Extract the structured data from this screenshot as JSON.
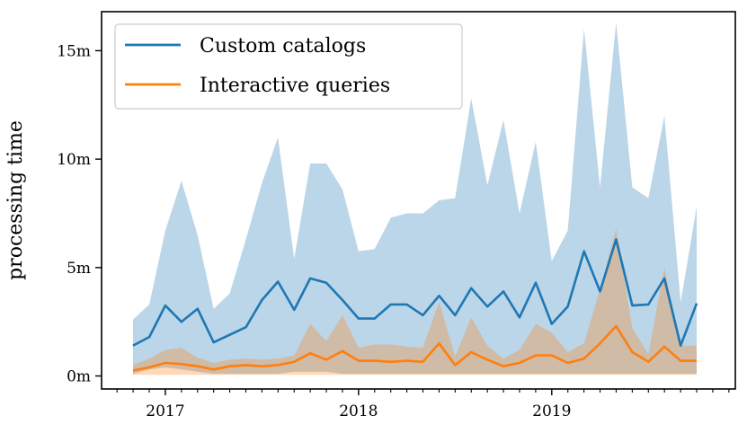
{
  "chart_data": {
    "type": "line",
    "title": "",
    "xlabel": "",
    "ylabel": "processing time",
    "ylim": [
      -0.6,
      16.8
    ],
    "yticks": [
      {
        "value": 0,
        "label": "0m"
      },
      {
        "value": 5,
        "label": "5m"
      },
      {
        "value": 10,
        "label": "10m"
      },
      {
        "value": 15,
        "label": "15m"
      }
    ],
    "xlim": [
      2016.67,
      2019.95
    ],
    "xticks": [
      {
        "value": 2017,
        "label": "2017"
      },
      {
        "value": 2018,
        "label": "2018"
      },
      {
        "value": 2019,
        "label": "2019"
      }
    ],
    "legend": {
      "placement": "top-left",
      "entries": [
        "Custom catalogs",
        "Interactive queries"
      ]
    },
    "series": [
      {
        "name": "Custom catalogs",
        "color": "#1f77b4",
        "band_color": "#1f77b4",
        "points": [
          [
            2016.833,
            1.4,
            0.1,
            2.6
          ],
          [
            2016.917,
            1.8,
            0.3,
            3.3
          ],
          [
            2017.0,
            3.25,
            0.4,
            6.7
          ],
          [
            2017.083,
            2.5,
            0.3,
            9.0
          ],
          [
            2017.167,
            3.1,
            0.2,
            6.5
          ],
          [
            2017.25,
            1.55,
            0.1,
            3.1
          ],
          [
            2017.333,
            1.9,
            0.1,
            3.8
          ],
          [
            2017.417,
            2.25,
            0.1,
            6.3
          ],
          [
            2017.5,
            3.5,
            0.1,
            8.9
          ],
          [
            2017.583,
            4.35,
            0.1,
            11.0
          ],
          [
            2017.667,
            3.05,
            0.2,
            5.4
          ],
          [
            2017.75,
            4.5,
            0.2,
            9.8
          ],
          [
            2017.833,
            4.3,
            0.2,
            9.8
          ],
          [
            2017.917,
            3.5,
            0.1,
            8.6
          ],
          [
            2018.0,
            2.65,
            0.1,
            5.75
          ],
          [
            2018.083,
            2.65,
            0.1,
            5.85
          ],
          [
            2018.167,
            3.3,
            0.1,
            7.3
          ],
          [
            2018.25,
            3.3,
            0.1,
            7.5
          ],
          [
            2018.333,
            2.8,
            0.1,
            7.5
          ],
          [
            2018.417,
            3.7,
            0.1,
            8.1
          ],
          [
            2018.5,
            2.8,
            0.1,
            8.2
          ],
          [
            2018.583,
            4.05,
            0.1,
            12.8
          ],
          [
            2018.667,
            3.2,
            0.1,
            8.8
          ],
          [
            2018.75,
            3.9,
            0.1,
            11.8
          ],
          [
            2018.833,
            2.7,
            0.1,
            7.5
          ],
          [
            2018.917,
            4.3,
            0.1,
            10.8
          ],
          [
            2019.0,
            2.4,
            0.1,
            5.3
          ],
          [
            2019.083,
            3.2,
            0.1,
            6.7
          ],
          [
            2019.167,
            5.75,
            0.1,
            16.0
          ],
          [
            2019.25,
            3.9,
            0.1,
            8.7
          ],
          [
            2019.333,
            6.3,
            0.1,
            16.3
          ],
          [
            2019.417,
            3.25,
            0.1,
            8.7
          ],
          [
            2019.5,
            3.3,
            0.1,
            8.2
          ],
          [
            2019.583,
            4.5,
            0.1,
            12.0
          ],
          [
            2019.667,
            1.4,
            0.1,
            3.4
          ],
          [
            2019.75,
            3.35,
            0.1,
            7.8
          ]
        ]
      },
      {
        "name": "Interactive queries",
        "color": "#ff7f0e",
        "band_color": "#ff7f0e",
        "points": [
          [
            2016.833,
            0.25,
            0.05,
            0.5
          ],
          [
            2016.917,
            0.4,
            0.05,
            0.8
          ],
          [
            2017.0,
            0.6,
            0.05,
            1.2
          ],
          [
            2017.083,
            0.55,
            0.05,
            1.3
          ],
          [
            2017.167,
            0.45,
            0.05,
            0.85
          ],
          [
            2017.25,
            0.3,
            0.05,
            0.6
          ],
          [
            2017.333,
            0.45,
            0.05,
            0.75
          ],
          [
            2017.417,
            0.5,
            0.05,
            0.8
          ],
          [
            2017.5,
            0.45,
            0.05,
            0.75
          ],
          [
            2017.583,
            0.5,
            0.05,
            0.8
          ],
          [
            2017.667,
            0.65,
            0.05,
            0.95
          ],
          [
            2017.75,
            1.05,
            0.05,
            2.4
          ],
          [
            2017.833,
            0.75,
            0.05,
            1.6
          ],
          [
            2017.917,
            1.15,
            0.05,
            2.8
          ],
          [
            2018.0,
            0.7,
            0.05,
            1.3
          ],
          [
            2018.083,
            0.7,
            0.05,
            1.45
          ],
          [
            2018.167,
            0.65,
            0.05,
            1.45
          ],
          [
            2018.25,
            0.7,
            0.05,
            1.35
          ],
          [
            2018.333,
            0.65,
            0.05,
            1.3
          ],
          [
            2018.417,
            1.5,
            0.05,
            3.4
          ],
          [
            2018.5,
            0.5,
            0.05,
            0.9
          ],
          [
            2018.583,
            1.1,
            0.05,
            2.7
          ],
          [
            2018.667,
            0.75,
            0.05,
            1.4
          ],
          [
            2018.75,
            0.45,
            0.05,
            0.8
          ],
          [
            2018.833,
            0.6,
            0.05,
            1.2
          ],
          [
            2018.917,
            0.95,
            0.05,
            2.4
          ],
          [
            2019.0,
            0.95,
            0.05,
            2.0
          ],
          [
            2019.083,
            0.6,
            0.05,
            1.1
          ],
          [
            2019.167,
            0.8,
            0.05,
            1.5
          ],
          [
            2019.25,
            1.5,
            0.05,
            4.0
          ],
          [
            2019.333,
            2.3,
            0.05,
            6.8
          ],
          [
            2019.417,
            1.1,
            0.05,
            2.2
          ],
          [
            2019.5,
            0.65,
            0.05,
            1.0
          ],
          [
            2019.583,
            1.35,
            0.05,
            5.0
          ],
          [
            2019.667,
            0.7,
            0.05,
            1.4
          ],
          [
            2019.75,
            0.7,
            0.05,
            1.4
          ]
        ]
      }
    ]
  }
}
